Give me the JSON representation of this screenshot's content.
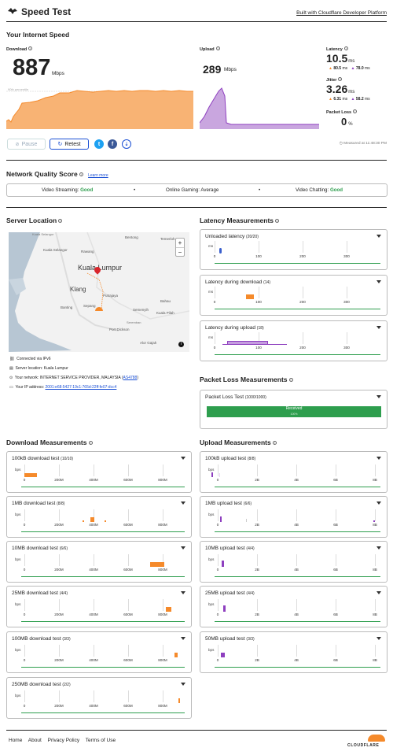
{
  "app": {
    "title": "Speed Test",
    "built_with": "Built with Cloudflare Developer Platform"
  },
  "summary": {
    "heading": "Your Internet Speed",
    "download_label": "Download",
    "download_value": "887",
    "download_unit": "Mbps",
    "percentile_label": "90th percentile",
    "upload_label": "Upload",
    "upload_value": "289",
    "upload_unit": "Mbps",
    "latency_label": "Latency",
    "latency_value": "10.5",
    "latency_unit": "ms",
    "latency_down": "80.5",
    "latency_up": "78.0",
    "ms": "ms",
    "jitter_label": "Jitter",
    "jitter_value": "3.26",
    "jitter_unit": "ms",
    "jitter_down": "6.31",
    "jitter_up": "58.2",
    "loss_label": "Packet Loss",
    "loss_value": "0",
    "loss_unit": "%",
    "pause": "Pause",
    "retest": "Retest",
    "measured": "Measured at 11:48:30 PM",
    "download_fraction": 0.887
  },
  "nq": {
    "heading": "Network Quality Score",
    "learn_more": "Learn more",
    "items": [
      {
        "label": "Video Streaming:",
        "value": "Good"
      },
      {
        "label": "Online Gaming:",
        "value": "Average"
      },
      {
        "label": "Video Chatting:",
        "value": "Good"
      }
    ],
    "good_color": "#2e9e4e"
  },
  "server": {
    "heading": "Server Location",
    "map_labels": [
      "Kuala Lumpur",
      "Klang",
      "Kuala Selangor",
      "Rawang",
      "Bentong",
      "Putrajaya",
      "Sepang",
      "Banting",
      "Semenyih",
      "Kuala Pilah",
      "Bahau",
      "Port Dickson",
      "Alor Gajah",
      "Seremban",
      "Temerloh"
    ],
    "connected": "Connected via IPv6",
    "location": "Server location: Kuala Lumpur",
    "network_prefix": "Your network: INTERNET SERVICE PROVIDER, MALAYSIA (",
    "asn": "AS4788",
    "network_suffix": ")",
    "ip_prefix": "Your IP address: ",
    "ip": "2001:e68:5427:19c1:765d:22ff:fe07:dcc4"
  },
  "latency": {
    "heading": "Latency Measurements",
    "cards": [
      {
        "title": "Unloaded latency",
        "count": "(20/20)"
      },
      {
        "title": "Latency during download",
        "count": "(14)"
      },
      {
        "title": "Latency during upload",
        "count": "(18)"
      }
    ],
    "unit": "ms",
    "ticks": [
      "0",
      "100",
      "200",
      "300"
    ]
  },
  "loss": {
    "heading": "Packet Loss Measurements",
    "card": {
      "title": "Packet Loss Test",
      "count": "(1000/1000)"
    },
    "received": "Received",
    "received_pct": "100%"
  },
  "download": {
    "heading": "Download Measurements",
    "cards": [
      {
        "title": "100kB download test",
        "count": "(10/10)"
      },
      {
        "title": "1MB download test",
        "count": "(8/8)"
      },
      {
        "title": "10MB download test",
        "count": "(6/6)"
      },
      {
        "title": "25MB download test",
        "count": "(4/4)"
      },
      {
        "title": "100MB download test",
        "count": "(3/3)"
      },
      {
        "title": "250MB download test",
        "count": "(2/2)"
      }
    ],
    "unit": "bps",
    "ticks": [
      "0",
      "200M",
      "400M",
      "600M",
      "800M"
    ]
  },
  "upload": {
    "heading": "Upload Measurements",
    "cards": [
      {
        "title": "100kB upload test",
        "count": "(8/8)"
      },
      {
        "title": "1MB upload test",
        "count": "(6/6)"
      },
      {
        "title": "10MB upload test",
        "count": "(4/4)"
      },
      {
        "title": "25MB upload test",
        "count": "(4/4)"
      },
      {
        "title": "50MB upload test",
        "count": "(3/3)"
      }
    ],
    "unit": "bps",
    "ticks": [
      "0",
      "2B",
      "4B",
      "6B",
      "8B"
    ]
  },
  "footer": {
    "links": [
      "Home",
      "About",
      "Privacy Policy",
      "Terms of Use"
    ],
    "brand": "CLOUDFLARE"
  },
  "colors": {
    "download": "#f58a2b",
    "upload": "#8e3fbf",
    "green": "#2e9e4e",
    "blue": "#1a4fd4"
  }
}
